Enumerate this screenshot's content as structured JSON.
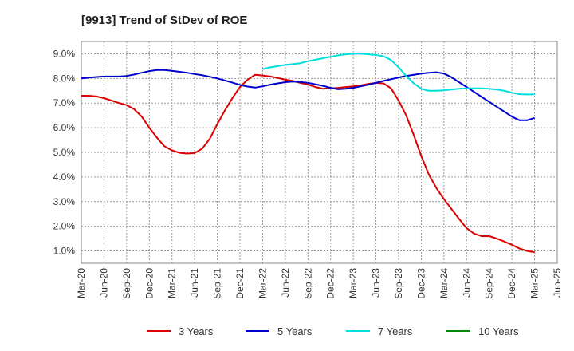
{
  "chart_data": {
    "type": "line",
    "title": "[9913]  Trend of StDev of ROE",
    "xlabel": "",
    "ylabel": "",
    "x_tick_labels": [
      "Mar-20",
      "Jun-20",
      "Sep-20",
      "Dec-20",
      "Mar-21",
      "Jun-21",
      "Sep-21",
      "Dec-21",
      "Mar-22",
      "Jun-22",
      "Sep-22",
      "Dec-22",
      "Mar-23",
      "Jun-23",
      "Sep-23",
      "Dec-23",
      "Mar-24",
      "Jun-24",
      "Sep-24",
      "Dec-24",
      "Mar-25",
      "Jun-25"
    ],
    "y_tick_labels": [
      "1.0%",
      "2.0%",
      "3.0%",
      "4.0%",
      "5.0%",
      "6.0%",
      "7.0%",
      "8.0%",
      "9.0%"
    ],
    "y_ticks": [
      1,
      2,
      3,
      4,
      5,
      6,
      7,
      8,
      9
    ],
    "ylim": [
      0.5,
      9.5
    ],
    "grid": true,
    "legend_position": "bottom",
    "series": [
      {
        "name": "3 Years",
        "color": "#dd0000",
        "x": [
          "Mar-20",
          "Apr-20",
          "May-20",
          "Jun-20",
          "Jul-20",
          "Aug-20",
          "Sep-20",
          "Oct-20",
          "Nov-20",
          "Dec-20",
          "Jan-21",
          "Feb-21",
          "Mar-21",
          "Apr-21",
          "May-21",
          "Jun-21",
          "Jul-21",
          "Aug-21",
          "Sep-21",
          "Oct-21",
          "Nov-21",
          "Dec-21",
          "Jan-22",
          "Feb-22",
          "Mar-22",
          "Apr-22",
          "May-22",
          "Jun-22",
          "Jul-22",
          "Aug-22",
          "Sep-22",
          "Oct-22",
          "Nov-22",
          "Dec-22",
          "Jan-23",
          "Feb-23",
          "Mar-23",
          "Apr-23",
          "May-23",
          "Jun-23",
          "Jul-23",
          "Aug-23",
          "Sep-23",
          "Oct-23",
          "Nov-23",
          "Dec-23",
          "Jan-24",
          "Feb-24",
          "Mar-24",
          "Apr-24",
          "May-24",
          "Jun-24",
          "Jul-24",
          "Aug-24",
          "Sep-24",
          "Oct-24",
          "Nov-24",
          "Dec-24",
          "Jan-25",
          "Feb-25",
          "Mar-25"
        ],
        "values": [
          7.3,
          7.3,
          7.27,
          7.2,
          7.1,
          7.0,
          6.92,
          6.75,
          6.45,
          6.0,
          5.6,
          5.25,
          5.08,
          4.98,
          4.95,
          4.97,
          5.15,
          5.55,
          6.15,
          6.7,
          7.2,
          7.65,
          7.95,
          8.15,
          8.12,
          8.08,
          8.02,
          7.95,
          7.9,
          7.82,
          7.75,
          7.65,
          7.58,
          7.6,
          7.62,
          7.65,
          7.68,
          7.72,
          7.78,
          7.82,
          7.8,
          7.6,
          7.1,
          6.5,
          5.7,
          4.85,
          4.1,
          3.55,
          3.1,
          2.7,
          2.3,
          1.92,
          1.7,
          1.6,
          1.6,
          1.5,
          1.38,
          1.25,
          1.1,
          1.0,
          0.95
        ]
      },
      {
        "name": "5 Years",
        "color": "#0000cc",
        "x": [
          "Mar-20",
          "Apr-20",
          "May-20",
          "Jun-20",
          "Jul-20",
          "Aug-20",
          "Sep-20",
          "Oct-20",
          "Nov-20",
          "Dec-20",
          "Jan-21",
          "Feb-21",
          "Mar-21",
          "Apr-21",
          "May-21",
          "Jun-21",
          "Jul-21",
          "Aug-21",
          "Sep-21",
          "Oct-21",
          "Nov-21",
          "Dec-21",
          "Jan-22",
          "Feb-22",
          "Mar-22",
          "Apr-22",
          "May-22",
          "Jun-22",
          "Jul-22",
          "Aug-22",
          "Sep-22",
          "Oct-22",
          "Nov-22",
          "Dec-22",
          "Jan-23",
          "Feb-23",
          "Mar-23",
          "Apr-23",
          "May-23",
          "Jun-23",
          "Jul-23",
          "Aug-23",
          "Sep-23",
          "Oct-23",
          "Nov-23",
          "Dec-23",
          "Jan-24",
          "Feb-24",
          "Mar-24",
          "Apr-24",
          "May-24",
          "Jun-24",
          "Jul-24",
          "Aug-24",
          "Sep-24",
          "Oct-24",
          "Nov-24",
          "Dec-24",
          "Jan-25",
          "Feb-25",
          "Mar-25"
        ],
        "values": [
          8.0,
          8.03,
          8.06,
          8.08,
          8.08,
          8.08,
          8.1,
          8.16,
          8.23,
          8.3,
          8.34,
          8.34,
          8.31,
          8.27,
          8.23,
          8.18,
          8.13,
          8.07,
          8.0,
          7.92,
          7.83,
          7.74,
          7.67,
          7.63,
          7.68,
          7.75,
          7.8,
          7.85,
          7.87,
          7.86,
          7.82,
          7.76,
          7.7,
          7.62,
          7.56,
          7.58,
          7.62,
          7.68,
          7.75,
          7.82,
          7.9,
          7.97,
          8.04,
          8.1,
          8.15,
          8.2,
          8.23,
          8.25,
          8.2,
          8.05,
          7.85,
          7.65,
          7.45,
          7.25,
          7.05,
          6.85,
          6.65,
          6.45,
          6.3,
          6.3,
          6.4
        ]
      },
      {
        "name": "7 Years",
        "color": "#00dddd",
        "x": [
          "Mar-22",
          "Apr-22",
          "May-22",
          "Jun-22",
          "Jul-22",
          "Aug-22",
          "Sep-22",
          "Oct-22",
          "Nov-22",
          "Dec-22",
          "Jan-23",
          "Feb-23",
          "Mar-23",
          "Apr-23",
          "May-23",
          "Jun-23",
          "Jul-23",
          "Aug-23",
          "Sep-23",
          "Oct-23",
          "Nov-23",
          "Dec-23",
          "Jan-24",
          "Feb-24",
          "Mar-24",
          "Apr-24",
          "May-24",
          "Jun-24",
          "Jul-24",
          "Aug-24",
          "Sep-24",
          "Oct-24",
          "Nov-24",
          "Dec-24",
          "Jan-25",
          "Feb-25",
          "Mar-25"
        ],
        "values": [
          8.38,
          8.45,
          8.5,
          8.55,
          8.58,
          8.62,
          8.7,
          8.76,
          8.82,
          8.88,
          8.94,
          8.98,
          9.0,
          9.0,
          8.98,
          8.95,
          8.9,
          8.75,
          8.45,
          8.1,
          7.8,
          7.58,
          7.5,
          7.5,
          7.52,
          7.55,
          7.58,
          7.6,
          7.6,
          7.6,
          7.58,
          7.55,
          7.5,
          7.42,
          7.36,
          7.35,
          7.35
        ]
      },
      {
        "name": "10 Years",
        "color": "#008800",
        "x": [],
        "values": []
      }
    ]
  }
}
